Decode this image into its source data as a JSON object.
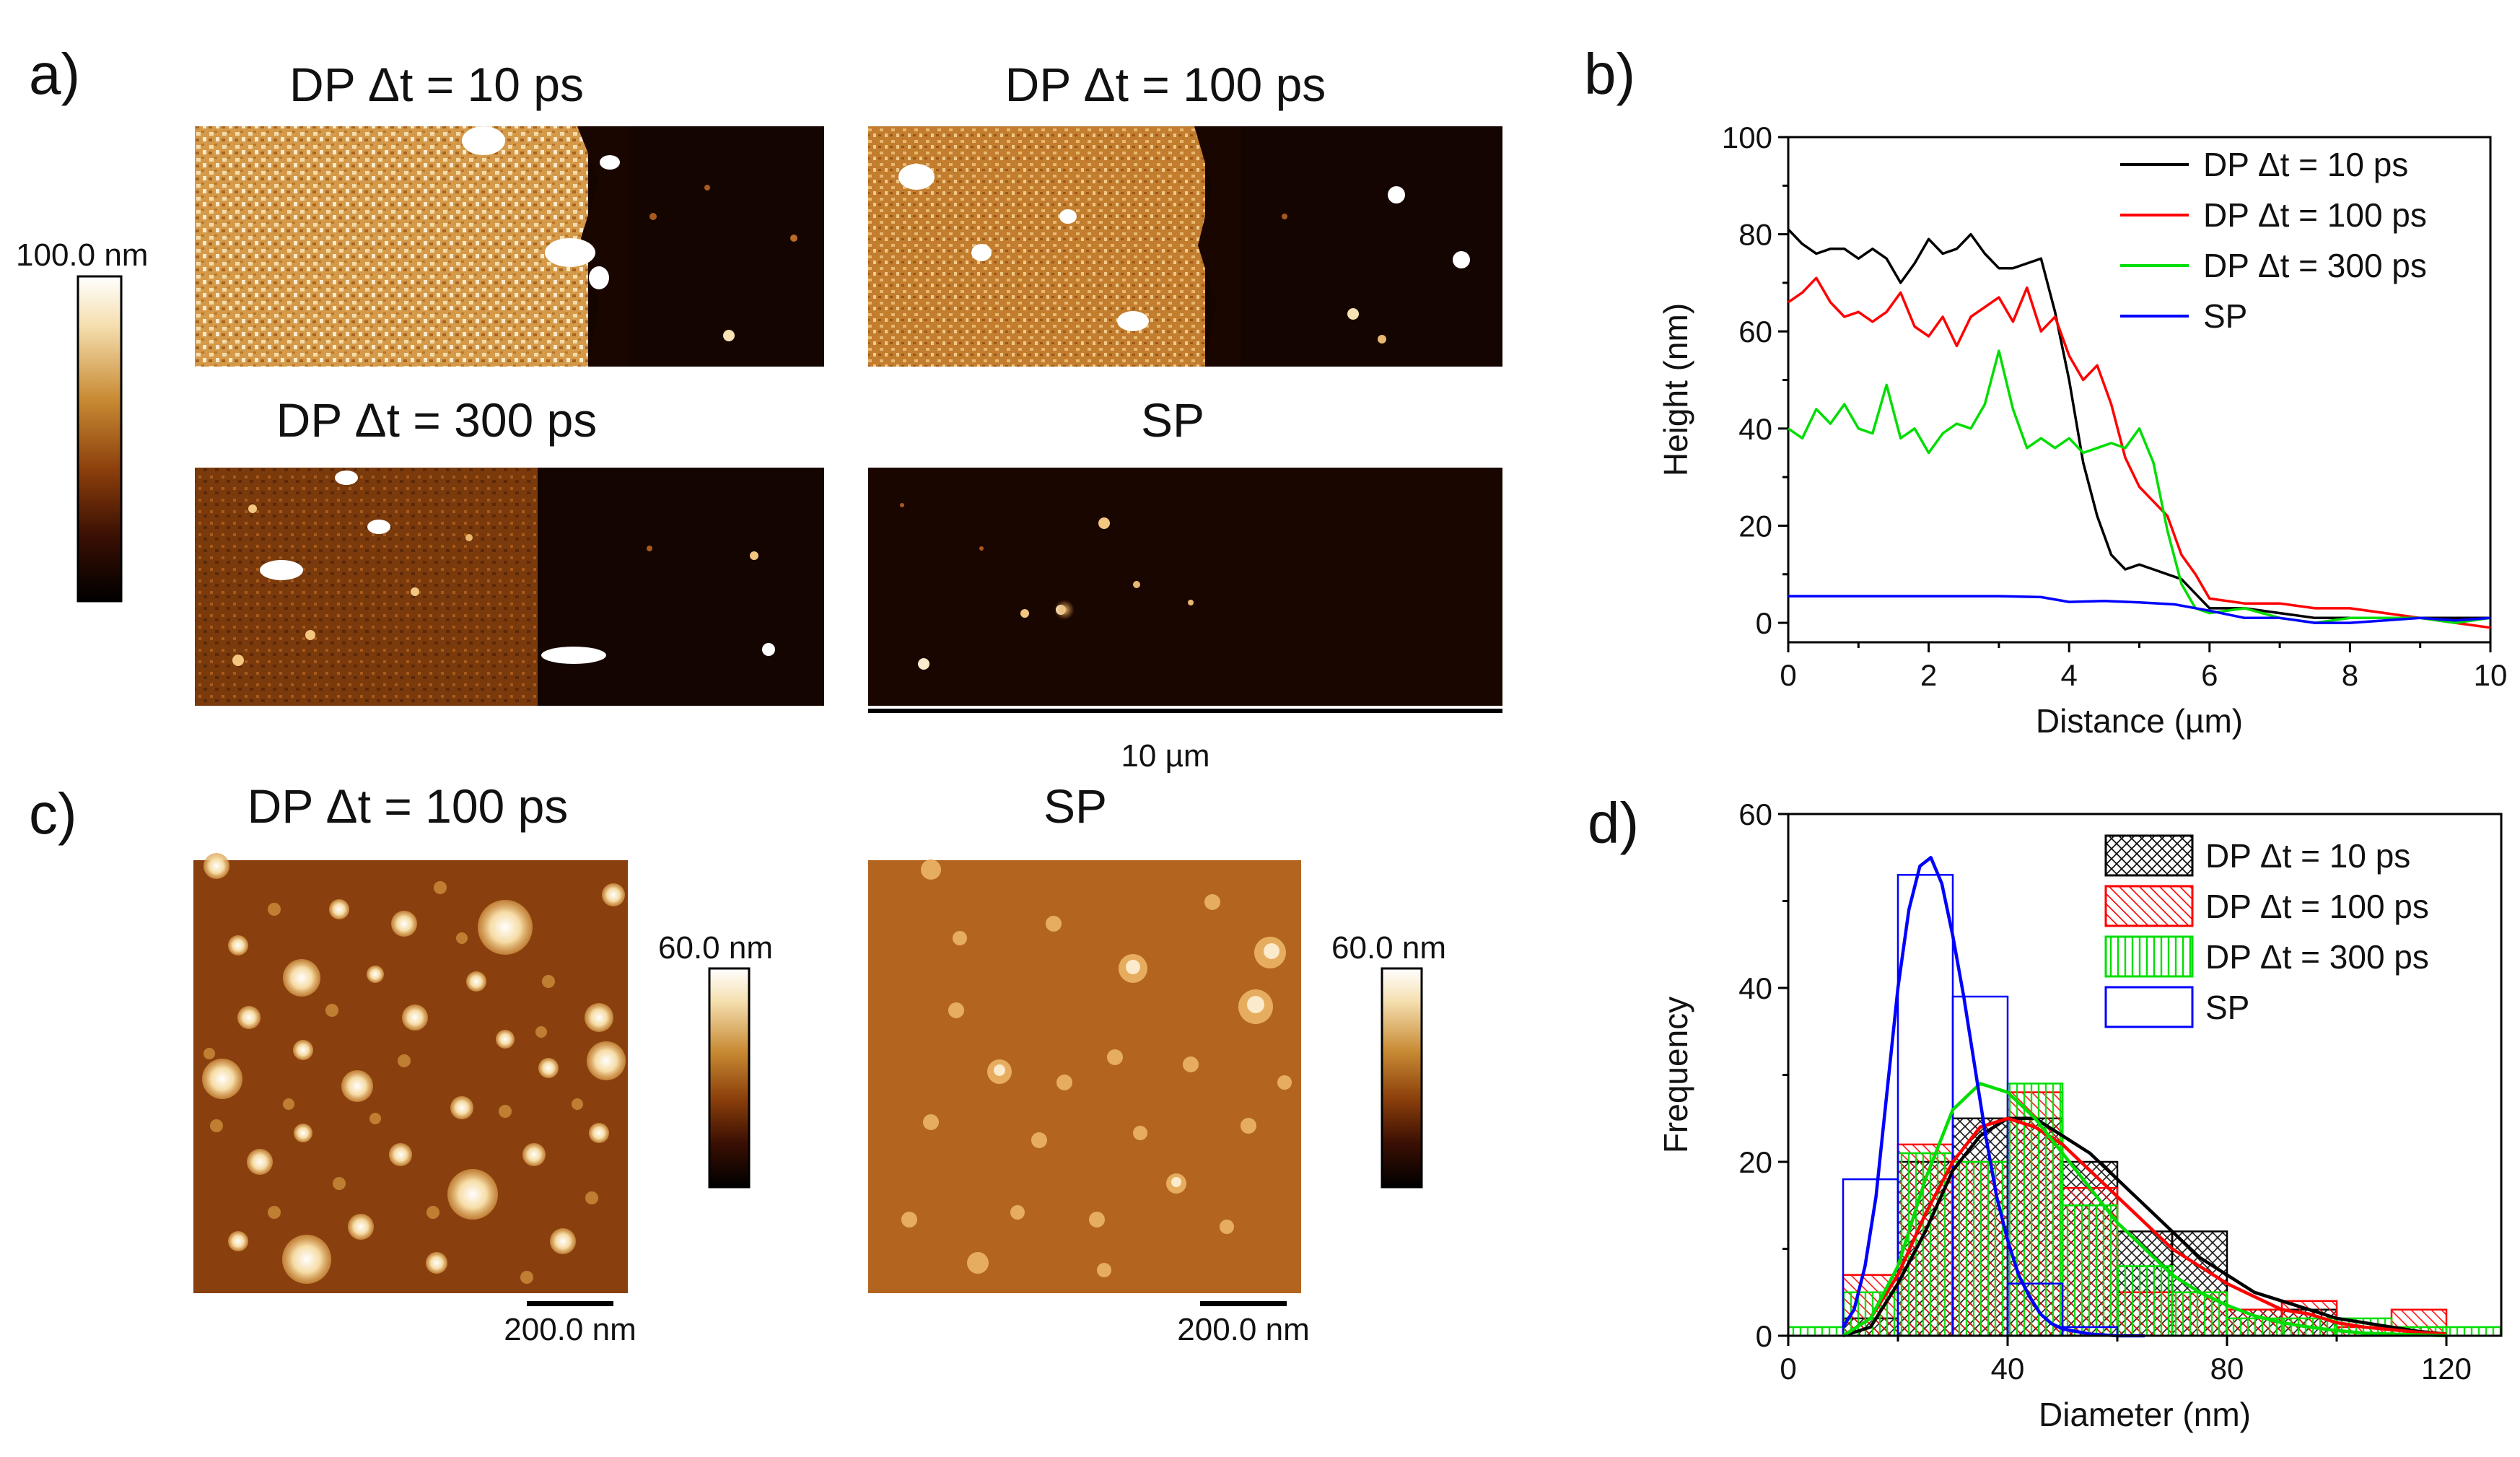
{
  "panel_a": {
    "letter": "a)",
    "colorbar_label": "100.0 nm",
    "images": [
      {
        "title": "DP Δt = 10 ps"
      },
      {
        "title": "DP Δt = 100 ps"
      },
      {
        "title": "DP Δt = 300 ps"
      },
      {
        "title": "SP"
      }
    ],
    "scale_label": "10 µm"
  },
  "panel_c": {
    "letter": "c)",
    "images": [
      {
        "title": "DP Δt = 100 ps",
        "colorbar_label": "60.0 nm",
        "scale_label": "200.0 nm"
      },
      {
        "title": "SP",
        "colorbar_label": "60.0 nm",
        "scale_label": "200.0 nm"
      }
    ]
  },
  "colors": {
    "black": "#000000",
    "red": "#ff0000",
    "green": "#00dd00",
    "blue": "#0000ff"
  },
  "chart_data": [
    {
      "panel": "b)",
      "type": "line",
      "xlabel": "Distance (µm)",
      "ylabel": "Height  (nm)",
      "xlim": [
        0,
        10
      ],
      "ylim": [
        -4,
        100
      ],
      "xticks": [
        0,
        2,
        4,
        6,
        8,
        10
      ],
      "yticks": [
        0,
        20,
        40,
        60,
        80,
        100
      ],
      "legend_position": "top-right",
      "series": [
        {
          "name": "DP Δt = 10 ps",
          "color": "#000000",
          "x": [
            0,
            0.2,
            0.4,
            0.6,
            0.8,
            1.0,
            1.2,
            1.4,
            1.6,
            1.8,
            2.0,
            2.2,
            2.4,
            2.6,
            2.8,
            3.0,
            3.2,
            3.4,
            3.6,
            3.8,
            4.0,
            4.2,
            4.4,
            4.6,
            4.8,
            5.0,
            5.2,
            5.4,
            5.6,
            5.8,
            6.0,
            6.5,
            7.0,
            7.5,
            8.0,
            8.5,
            9.0,
            9.5,
            10.0
          ],
          "y": [
            81,
            78,
            76,
            77,
            77,
            75,
            77,
            75,
            70,
            74,
            79,
            76,
            77,
            80,
            76,
            73,
            73,
            74,
            75,
            64,
            50,
            33,
            22,
            14,
            11,
            12,
            11,
            10,
            9,
            6,
            3,
            3,
            2,
            1,
            1,
            1,
            1,
            1,
            1
          ]
        },
        {
          "name": "DP Δt = 100 ps",
          "color": "#ff0000",
          "x": [
            0,
            0.2,
            0.4,
            0.6,
            0.8,
            1.0,
            1.2,
            1.4,
            1.6,
            1.8,
            2.0,
            2.2,
            2.4,
            2.6,
            2.8,
            3.0,
            3.2,
            3.4,
            3.6,
            3.8,
            4.0,
            4.2,
            4.4,
            4.6,
            4.8,
            5.0,
            5.2,
            5.4,
            5.6,
            5.8,
            6.0,
            6.5,
            7.0,
            7.5,
            8.0,
            8.5,
            9.0,
            9.5,
            10.0
          ],
          "y": [
            66,
            68,
            71,
            66,
            63,
            64,
            62,
            64,
            68,
            61,
            59,
            63,
            57,
            63,
            65,
            67,
            62,
            69,
            60,
            63,
            55,
            50,
            53,
            45,
            34,
            28,
            25,
            22,
            14,
            10,
            5,
            4,
            4,
            3,
            3,
            2,
            1,
            0,
            -1
          ]
        },
        {
          "name": "DP Δt = 300 ps",
          "color": "#00dd00",
          "x": [
            0,
            0.2,
            0.4,
            0.6,
            0.8,
            1.0,
            1.2,
            1.4,
            1.6,
            1.8,
            2.0,
            2.2,
            2.4,
            2.6,
            2.8,
            3.0,
            3.2,
            3.4,
            3.6,
            3.8,
            4.0,
            4.2,
            4.4,
            4.6,
            4.8,
            5.0,
            5.2,
            5.4,
            5.6,
            5.8,
            6.0,
            6.5,
            7.0,
            7.5,
            8.0,
            8.5,
            9.0,
            9.5,
            10.0
          ],
          "y": [
            40,
            38,
            44,
            41,
            45,
            40,
            39,
            49,
            38,
            40,
            35,
            39,
            41,
            40,
            45,
            56,
            44,
            36,
            38,
            36,
            38,
            35,
            36,
            37,
            36,
            40,
            33,
            19,
            8,
            3,
            2,
            3,
            1,
            0,
            1,
            1,
            1,
            0,
            1
          ]
        },
        {
          "name": "SP",
          "color": "#0000ff",
          "x": [
            0,
            1,
            2,
            3,
            3.6,
            4.0,
            4.5,
            5.0,
            5.5,
            6.0,
            6.5,
            7.0,
            7.5,
            8.0,
            8.5,
            9.0,
            9.5,
            10.0
          ],
          "y": [
            5.5,
            5.5,
            5.5,
            5.5,
            5.3,
            4.3,
            4.5,
            4.2,
            3.8,
            2.5,
            1,
            1,
            0,
            0,
            0.5,
            1,
            0.5,
            1
          ]
        }
      ]
    },
    {
      "panel": "d)",
      "type": "bar",
      "xlabel": "Diameter (nm)",
      "ylabel": "Frequency",
      "xlim": [
        0,
        130
      ],
      "ylim": [
        0,
        60
      ],
      "xticks": [
        0,
        40,
        80,
        120
      ],
      "yticks": [
        0,
        20,
        40,
        60
      ],
      "legend_position": "top-right",
      "series": [
        {
          "name": "DP Δt = 10 ps",
          "color": "#000000",
          "hatch": "cross",
          "bin_edges": [
            10,
            20,
            30,
            40,
            50,
            60,
            70,
            80,
            90,
            100
          ],
          "counts": [
            2,
            20,
            25,
            25,
            20,
            12,
            12,
            3,
            3
          ],
          "fit": {
            "x": [
              10,
              15,
              20,
              25,
              30,
              35,
              40,
              45,
              50,
              55,
              60,
              65,
              70,
              75,
              80,
              85,
              90,
              95,
              100,
              105,
              110,
              115,
              120
            ],
            "y": [
              0,
              1,
              6,
              12,
              19,
              23,
              25,
              25,
              23,
              21,
              18,
              15,
              12,
              9,
              7,
              5,
              4,
              3,
              2,
              1.5,
              1,
              0.5,
              0.2
            ]
          }
        },
        {
          "name": "DP Δt = 100 ps",
          "color": "#ff0000",
          "hatch": "diagonal",
          "bin_edges": [
            10,
            20,
            30,
            40,
            50,
            60,
            70,
            80,
            90,
            100,
            110,
            120
          ],
          "counts": [
            7,
            22,
            20,
            28,
            17,
            5,
            5,
            3,
            4,
            1,
            3
          ],
          "fit": {
            "x": [
              10,
              15,
              20,
              25,
              30,
              35,
              40,
              45,
              50,
              55,
              60,
              65,
              70,
              75,
              80,
              85,
              90,
              95,
              100,
              105,
              110,
              115,
              120
            ],
            "y": [
              0,
              2,
              7,
              14,
              20,
              24,
              25,
              24,
              22,
              19,
              16,
              13,
              10,
              8,
              6,
              4.5,
              3,
              2.5,
              1.5,
              1,
              0.7,
              0.4,
              0.2
            ]
          }
        },
        {
          "name": "DP Δt = 300 ps",
          "color": "#00dd00",
          "hatch": "vertical",
          "bin_edges": [
            0,
            10,
            20,
            30,
            40,
            50,
            60,
            70,
            80,
            90,
            100,
            110,
            120,
            130
          ],
          "counts": [
            1,
            5,
            21,
            20,
            29,
            15,
            8,
            5,
            2,
            2,
            2,
            1,
            1
          ],
          "fit": {
            "x": [
              10,
              15,
              20,
              25,
              30,
              35,
              40,
              45,
              50,
              55,
              60,
              65,
              70,
              75,
              80,
              85,
              90,
              95,
              100,
              105,
              110,
              115,
              120
            ],
            "y": [
              0,
              2,
              8,
              18,
              26,
              29,
              28,
              25,
              21,
              17,
              13,
              10,
              7,
              5,
              3.5,
              2.3,
              1.5,
              1,
              0.6,
              0.3,
              0.2,
              0.1,
              0
            ]
          }
        },
        {
          "name": "SP",
          "color": "#0000ff",
          "hatch": "none",
          "bin_edges": [
            10,
            20,
            30,
            40,
            50,
            60
          ],
          "counts": [
            18,
            53,
            39,
            6,
            1
          ],
          "fit": {
            "x": [
              10,
              12,
              14,
              16,
              18,
              20,
              22,
              24,
              26,
              28,
              30,
              32,
              34,
              36,
              38,
              40,
              42,
              44,
              46,
              48,
              50,
              55,
              60,
              65
            ],
            "y": [
              1,
              3,
              8,
              16,
              28,
              40,
              49,
              54,
              55,
              52,
              46,
              39,
              31,
              23,
              16,
              11,
              7,
              4.5,
              2.5,
              1.4,
              0.8,
              0.2,
              0,
              0
            ]
          }
        }
      ]
    }
  ]
}
